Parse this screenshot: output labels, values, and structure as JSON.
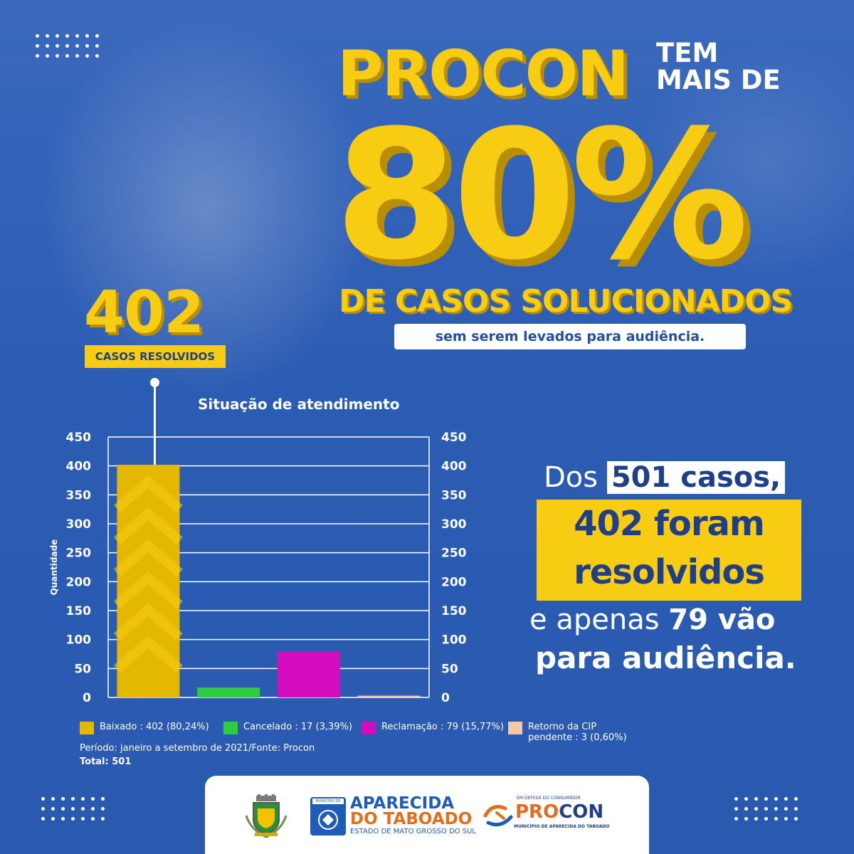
{
  "headline": {
    "procon": "PROCON",
    "tem": "TEM",
    "mais_de": "MAIS DE",
    "percent": "80%",
    "casos_solucionados": "DE CASOS SOLUCIONADOS",
    "sem_serem": "sem serem levados para audiência."
  },
  "highlight": {
    "number": "402",
    "label": "CASOS RESOLVIDOS"
  },
  "summary": {
    "dos": "Dos ",
    "casos_total": "501 casos,",
    "foram": "402 foram",
    "resolvidos": "resolvidos",
    "e_apenas": "e apenas ",
    "vao": "79 vão",
    "audiencia": "para audiência."
  },
  "chart_data": {
    "type": "bar",
    "title": "Situação de atendimento",
    "ylabel": "Quantidade",
    "ylim": [
      0,
      450
    ],
    "yticks": [
      0,
      50,
      100,
      150,
      200,
      250,
      300,
      350,
      400,
      450
    ],
    "categories": [
      "Baixado",
      "Cancelado",
      "Reclamação",
      "Retorno da CIP pendente"
    ],
    "values": [
      402,
      17,
      79,
      3
    ],
    "colors": [
      "#e4b800",
      "#2ecc40",
      "#d40cc0",
      "#f4c8a8"
    ],
    "grid": true,
    "legend": [
      {
        "label": "Baixado : 402 (80,24%)",
        "color": "#e4b800"
      },
      {
        "label": "Cancelado : 17 (3,39%)",
        "color": "#2ecc40"
      },
      {
        "label": "Reclamação : 79 (15,77%)",
        "color": "#d40cc0"
      },
      {
        "label": "Retorno da CIP",
        "label2": "pendente : 3 (0,60%)",
        "color": "#f4c8a8"
      }
    ],
    "periodo": "Período: janeiro a setembro de 2021/Fonte: Procon",
    "total": "Total: 501"
  },
  "footer": {
    "apa_tag": "MUNICÍPIO DE",
    "apa_name1": "APARECIDA",
    "apa_name2": "DO TABOADO",
    "apa_state": "ESTADO DE MATO GROSSO DO SUL",
    "procon_top": "EM DEFESA DO CONSUMIDOR",
    "procon_pro": "PRO",
    "procon_con": "CON",
    "procon_sub": "MUNICÍPIO DE APARECIDA DO TABOADO"
  },
  "colors": {
    "background": "#2b5cb3",
    "accent_yellow": "#f7cc12",
    "text_navy": "#1f3f88"
  }
}
